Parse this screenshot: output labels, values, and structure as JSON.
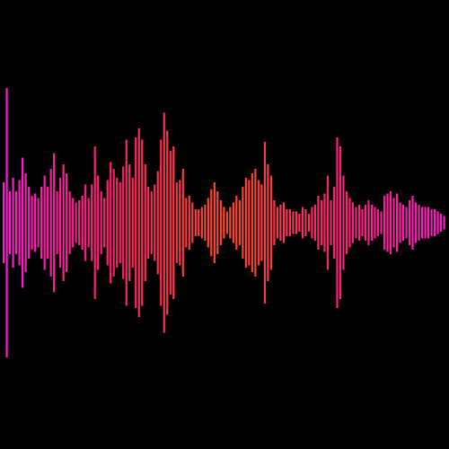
{
  "waveform": {
    "background": "#000000",
    "gradient": [
      "#ff1ad8",
      "#ff1f6e",
      "#ff4a2a",
      "#ff1f7a",
      "#ff1ad0"
    ],
    "bars": [
      0.18,
      0.6,
      0.14,
      0.2,
      0.14,
      0.19,
      0.29,
      0.22,
      0.16,
      0.12,
      0.13,
      0.11,
      0.16,
      0.21,
      0.16,
      0.24,
      0.31,
      0.14,
      0.2,
      0.26,
      0.22,
      0.14,
      0.11,
      0.09,
      0.1,
      0.12,
      0.17,
      0.11,
      0.17,
      0.34,
      0.21,
      0.14,
      0.11,
      0.19,
      0.27,
      0.24,
      0.2,
      0.18,
      0.25,
      0.37,
      0.26,
      0.2,
      0.38,
      0.42,
      0.37,
      0.26,
      0.16,
      0.14,
      0.17,
      0.23,
      0.37,
      0.49,
      0.41,
      0.32,
      0.34,
      0.18,
      0.19,
      0.24,
      0.11,
      0.12,
      0.09,
      0.06,
      0.06,
      0.07,
      0.08,
      0.11,
      0.15,
      0.18,
      0.14,
      0.1,
      0.07,
      0.05,
      0.07,
      0.09,
      0.12,
      0.1,
      0.16,
      0.2,
      0.19,
      0.22,
      0.24,
      0.19,
      0.17,
      0.36,
      0.26,
      0.21,
      0.1,
      0.07,
      0.08,
      0.09,
      0.06,
      0.06,
      0.05,
      0.05,
      0.04,
      0.07,
      0.06,
      0.04,
      0.07,
      0.08,
      0.12,
      0.1,
      0.13,
      0.21,
      0.1,
      0.16,
      0.38,
      0.34,
      0.21,
      0.14,
      0.11,
      0.09,
      0.07,
      0.08,
      0.06,
      0.08,
      0.1,
      0.08,
      0.07,
      0.06,
      0.05,
      0.12,
      0.13,
      0.14,
      0.11,
      0.13,
      0.09,
      0.08,
      0.07,
      0.1,
      0.12,
      0.09,
      0.08,
      0.07,
      0.07,
      0.07,
      0.06,
      0.06,
      0.05,
      0.04,
      0.03
    ]
  }
}
